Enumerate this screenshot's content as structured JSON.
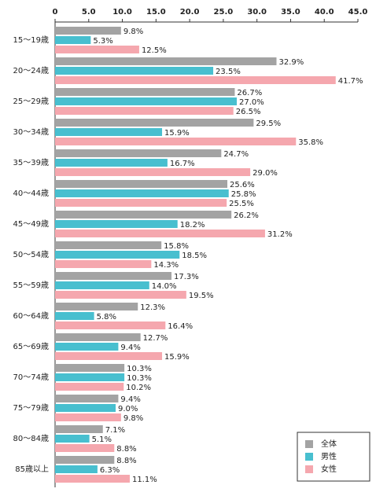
{
  "chart_data": {
    "type": "barh",
    "categories": [
      "15～19歳",
      "20～24歳",
      "25～29歳",
      "30～34歳",
      "35～39歳",
      "40～44歳",
      "45～49歳",
      "50～54歳",
      "55～59歳",
      "60～64歳",
      "65～69歳",
      "70～74歳",
      "75～79歳",
      "80～84歳",
      "85歳以上"
    ],
    "series": [
      {
        "name": "全体",
        "color": "#a3a3a3",
        "values": [
          9.8,
          32.9,
          26.7,
          29.5,
          24.7,
          25.6,
          26.2,
          15.8,
          17.3,
          12.3,
          12.7,
          10.3,
          9.4,
          7.1,
          8.8
        ],
        "value_labels": [
          "9.8%",
          "32.9%",
          "26.7%",
          "29.5%",
          "24.7%",
          "25.6%",
          "26.2%",
          "15.8%",
          "17.3%",
          "12.3%",
          "12.7%",
          "10.3%",
          "9.4%",
          "7.1%",
          "8.8%"
        ]
      },
      {
        "name": "男性",
        "color": "#48bfcf",
        "values": [
          5.3,
          23.5,
          27.0,
          15.9,
          16.7,
          25.8,
          18.2,
          18.5,
          14.0,
          5.8,
          9.4,
          10.3,
          9.0,
          5.1,
          6.3
        ],
        "value_labels": [
          "5.3%",
          "23.5%",
          "27.0%",
          "15.9%",
          "16.7%",
          "25.8%",
          "18.2%",
          "18.5%",
          "14.0%",
          "5.8%",
          "9.4%",
          "10.3%",
          "9.0%",
          "5.1%",
          "6.3%"
        ]
      },
      {
        "name": "女性",
        "color": "#f5a7ae",
        "values": [
          12.5,
          41.7,
          26.5,
          35.8,
          29.0,
          25.5,
          31.2,
          14.3,
          19.5,
          16.4,
          15.9,
          10.2,
          9.8,
          8.8,
          11.1
        ],
        "value_labels": [
          "12.5%",
          "41.7%",
          "26.5%",
          "35.8%",
          "29.0%",
          "25.5%",
          "31.2%",
          "14.3%",
          "19.5%",
          "16.4%",
          "15.9%",
          "10.2%",
          "9.8%",
          "8.8%",
          "11.1%"
        ]
      }
    ],
    "xlim": [
      0,
      45
    ],
    "xticks": [
      0,
      {
        "value": 5,
        "label": "5.0"
      },
      {
        "value": 10,
        "label": "10.0"
      },
      {
        "value": 15,
        "label": "15.0"
      },
      {
        "value": 20,
        "label": "20.0"
      },
      {
        "value": 25,
        "label": "25.0"
      },
      {
        "value": 30,
        "label": "30.0"
      },
      {
        "value": 35,
        "label": "35.0"
      },
      {
        "value": 40,
        "label": "40.0"
      },
      {
        "value": 45,
        "label": "45.0"
      }
    ],
    "legend": "lower right"
  }
}
